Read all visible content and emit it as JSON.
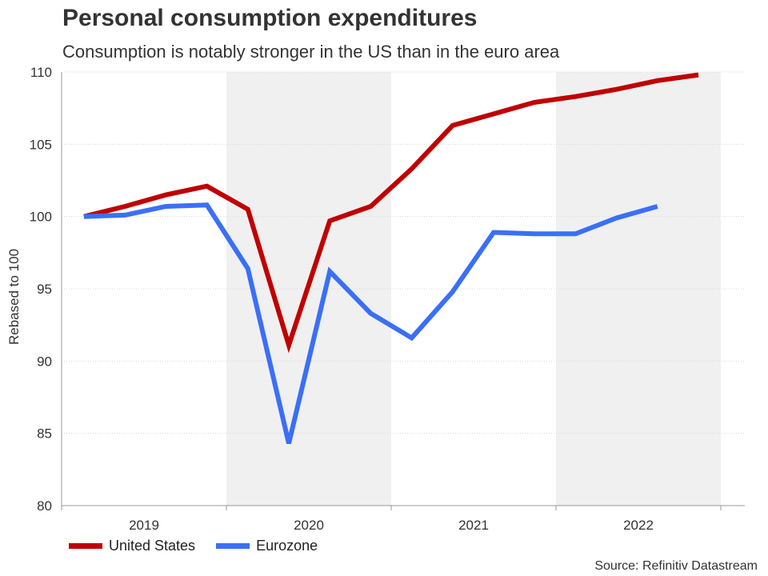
{
  "chart_data": {
    "type": "line",
    "title": "Personal consumption expenditures",
    "subtitle": "Consumption is notably stronger in the US than in the euro area",
    "ylabel": "Rebased to 100",
    "xlabel": "",
    "ylim": [
      80,
      110
    ],
    "yticks": [
      80,
      85,
      90,
      95,
      100,
      105,
      110
    ],
    "year_labels": [
      "2019",
      "2020",
      "2021",
      "2022"
    ],
    "shaded_years": [
      "2020",
      "2022"
    ],
    "x_quarters": [
      "2019 Q1",
      "2019 Q2",
      "2019 Q3",
      "2019 Q4",
      "2020 Q1",
      "2020 Q2",
      "2020 Q3",
      "2020 Q4",
      "2021 Q1",
      "2021 Q2",
      "2021 Q3",
      "2021 Q4",
      "2022 Q1",
      "2022 Q2",
      "2022 Q3",
      "2022 Q4"
    ],
    "series": [
      {
        "name": "United States",
        "color": "#c00000",
        "values": [
          100,
          100.7,
          101.5,
          102.1,
          100.5,
          91.1,
          99.7,
          100.7,
          103.3,
          106.3,
          107.1,
          107.9,
          108.3,
          108.8,
          109.4,
          109.8
        ]
      },
      {
        "name": "Eurozone",
        "color": "#3a6ff7",
        "values": [
          100,
          100.1,
          100.7,
          100.8,
          96.4,
          84.3,
          96.2,
          93.3,
          91.6,
          94.8,
          98.9,
          98.8,
          98.8,
          99.9,
          100.7
        ]
      }
    ],
    "legend_position": "bottom-left",
    "grid": true
  },
  "source": "Source: Refinitiv Datastream"
}
